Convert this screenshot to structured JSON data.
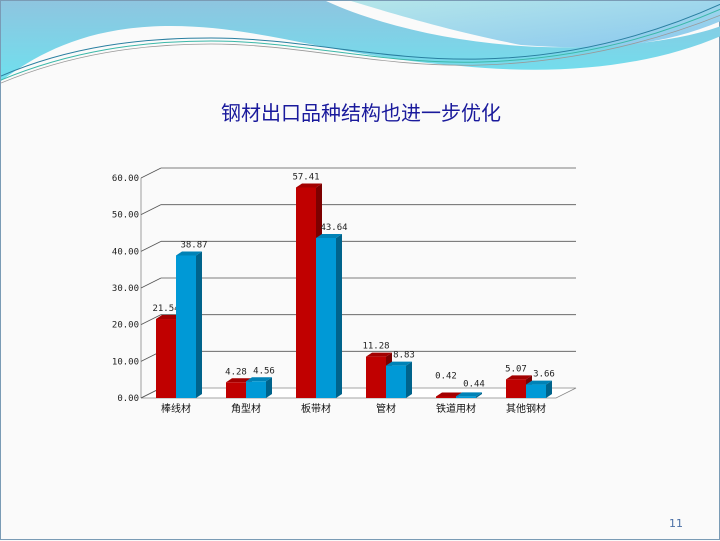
{
  "slide": {
    "page_number": "11"
  },
  "chart_data": {
    "type": "bar",
    "title": "钢材出口品种结构也进一步优化",
    "categories": [
      "棒线材",
      "角型材",
      "板带材",
      "管材",
      "铁道用材",
      "其他钢材"
    ],
    "series": [
      {
        "values": [
          21.54,
          4.28,
          57.41,
          11.28,
          0.42,
          5.07
        ],
        "color": "#c00000"
      },
      {
        "values": [
          38.87,
          4.56,
          43.64,
          8.83,
          0.44,
          3.66
        ],
        "color": "#0099d6"
      }
    ],
    "data_labels": [
      [
        "21.54",
        "4.28",
        "57.41",
        "11.28",
        "0.42",
        "5.07"
      ],
      [
        "38.87",
        "4.56",
        "43.64",
        "8.83",
        "0.44",
        "3.66"
      ]
    ],
    "y_ticks": [
      "0.00",
      "10.00",
      "20.00",
      "30.00",
      "40.00",
      "50.00",
      "60.00"
    ],
    "ylim": [
      0,
      60
    ],
    "grid": true,
    "style": "3d-clustered-column",
    "legend": "none"
  }
}
